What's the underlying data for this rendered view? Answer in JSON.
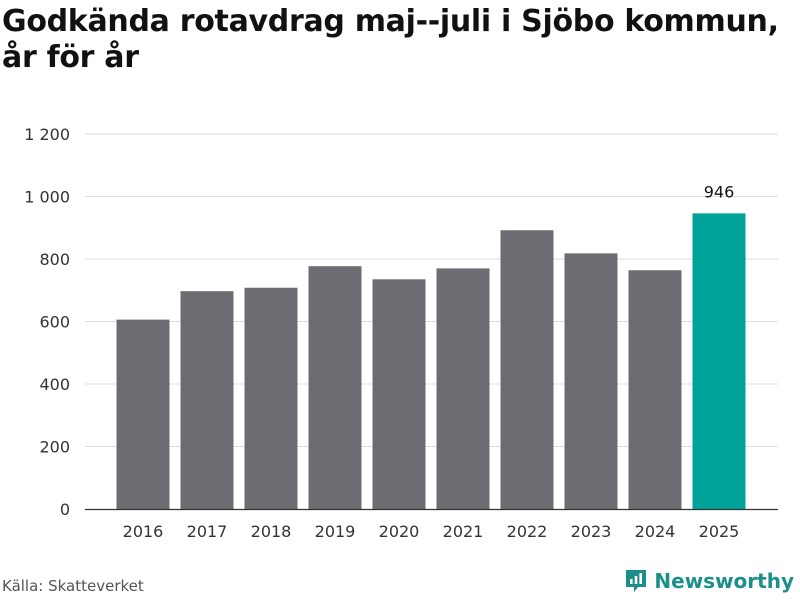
{
  "title": "Godkända rotavdrag maj--juli i Sjöbo kommun, år för år",
  "source": "Källa: Skatteverket",
  "brand": {
    "name": "Newsworthy",
    "icon": "newsworthy-logo-icon"
  },
  "colors": {
    "bar": "#6d6c73",
    "highlight": "#00a39a",
    "grid": "#dcdcdc",
    "axis": "#333333"
  },
  "chart_data": {
    "type": "bar",
    "title": "Godkända rotavdrag maj--juli i Sjöbo kommun, år för år",
    "xlabel": "",
    "ylabel": "",
    "categories": [
      "2016",
      "2017",
      "2018",
      "2019",
      "2020",
      "2021",
      "2022",
      "2023",
      "2024",
      "2025"
    ],
    "values": [
      606,
      697,
      708,
      777,
      735,
      770,
      892,
      818,
      764,
      946
    ],
    "highlight_index": 9,
    "data_labels": [
      {
        "index": 9,
        "text": "946"
      }
    ],
    "ylim": [
      0,
      1200
    ],
    "yticks": [
      0,
      200,
      400,
      600,
      800,
      1000,
      1200
    ],
    "ytick_labels": [
      "0",
      "200",
      "400",
      "600",
      "800",
      "1 000",
      "1 200"
    ],
    "grid": true,
    "legend": "none"
  }
}
